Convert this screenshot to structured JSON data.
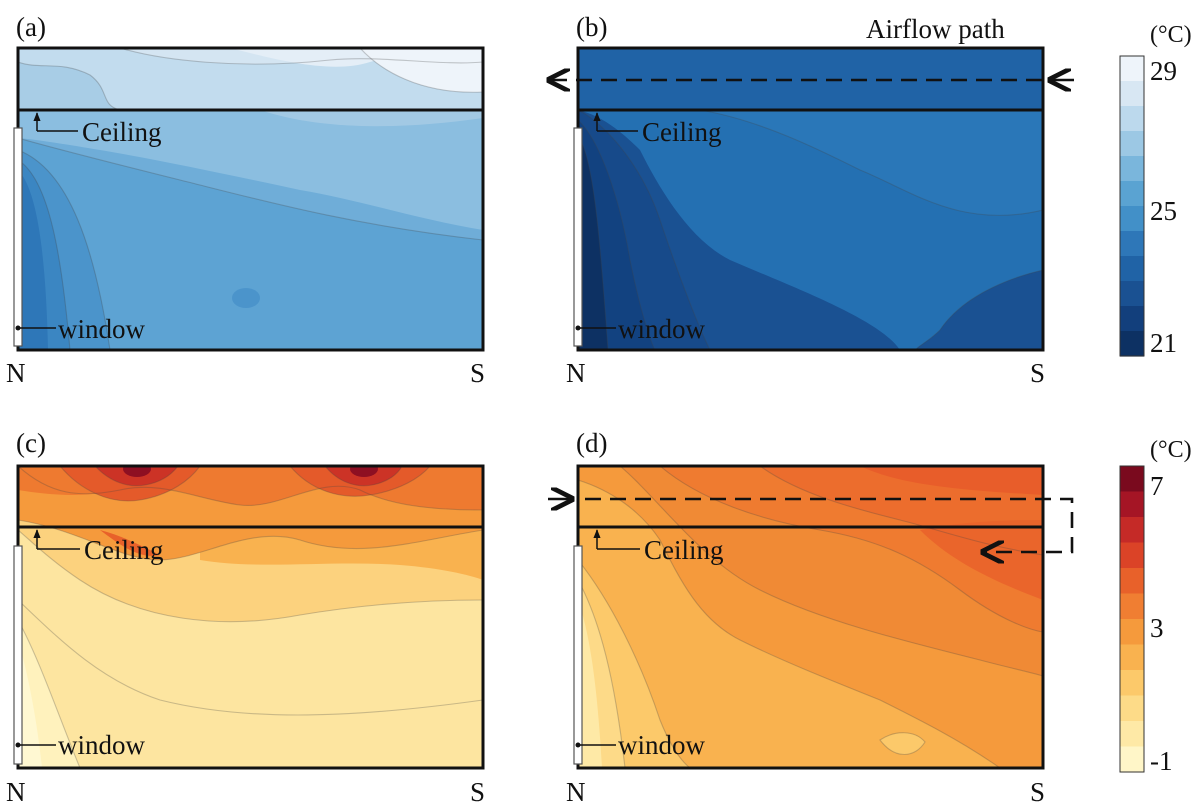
{
  "panels": [
    {
      "label": "(a)",
      "ceiling_label": "Ceiling",
      "window_label": "window",
      "left_label": "N",
      "right_label": "S",
      "scale": "cool"
    },
    {
      "label": "(b)",
      "ceiling_label": "Ceiling",
      "window_label": "window",
      "left_label": "N",
      "right_label": "S",
      "scale": "cool",
      "extra_label": "Airflow path"
    },
    {
      "label": "(c)",
      "ceiling_label": "Ceiling",
      "window_label": "window",
      "left_label": "N",
      "right_label": "S",
      "scale": "warm"
    },
    {
      "label": "(d)",
      "ceiling_label": "Ceiling",
      "window_label": "window",
      "left_label": "N",
      "right_label": "S",
      "scale": "warm"
    }
  ],
  "colorbars": [
    {
      "unit": "(°C)",
      "ticks": [
        "29",
        "25",
        "21"
      ],
      "range": [
        21,
        29
      ],
      "colors": [
        "#0d3163",
        "#123f7c",
        "#1a5192",
        "#2063a6",
        "#2e77b8",
        "#4290c8",
        "#5aa3d2",
        "#7ab6dc",
        "#9cc8e4",
        "#bcd9ed",
        "#d8e7f3",
        "#eef4fa"
      ]
    },
    {
      "unit": "(°C)",
      "ticks": [
        "7",
        "3",
        "-1"
      ],
      "range": [
        -1,
        7
      ],
      "colors": [
        "#fff6c8",
        "#fee9a6",
        "#fddb88",
        "#fcc96a",
        "#f9b24f",
        "#f59a3c",
        "#f07e32",
        "#e8612a",
        "#db4327",
        "#c52a27",
        "#a51525",
        "#7a0a1e"
      ]
    }
  ]
}
